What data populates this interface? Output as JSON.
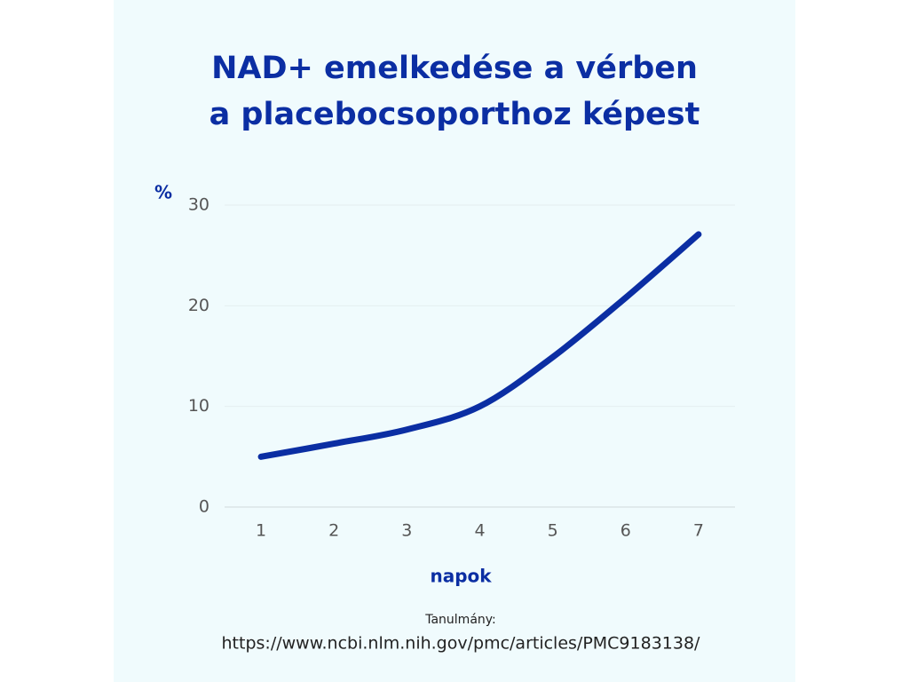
{
  "chart_data": {
    "type": "line",
    "title": [
      "NAD+ emelkedése a vérben",
      "a placebocsoporthoz képest"
    ],
    "y_label": "%",
    "x_label": "napok",
    "source": [
      "Tanulmány:",
      "https://www.ncbi.nlm.nih.gov/pmc/articles/PMC9183138/"
    ],
    "x": [
      1,
      2,
      3,
      4,
      5,
      6,
      7
    ],
    "series": [
      {
        "color": "#0b2ea3",
        "values": [
          5,
          6.3,
          7.7,
          10,
          14.9,
          20.8,
          27.1
        ]
      }
    ],
    "xlim": [
      0.5,
      7.5
    ],
    "xticks": [
      1,
      2,
      3,
      4,
      5,
      6,
      7
    ],
    "ylim": [
      0,
      30
    ],
    "yticks": [
      0,
      10,
      20,
      30
    ],
    "grid": true
  }
}
